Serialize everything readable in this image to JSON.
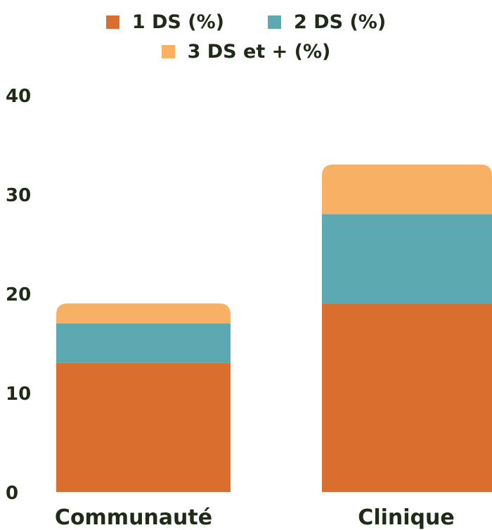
{
  "chart_data": {
    "type": "bar",
    "stacked": true,
    "categories": [
      "Communauté",
      "Clinique"
    ],
    "series": [
      {
        "name": "1 DS (%)",
        "values": [
          13,
          19
        ],
        "color": "#d96e2f"
      },
      {
        "name": "2 DS (%)",
        "values": [
          4,
          9
        ],
        "color": "#5da9b1"
      },
      {
        "name": "3 DS et + (%)",
        "values": [
          2,
          5
        ],
        "color": "#f8b065"
      }
    ],
    "y_ticks": [
      "0",
      "10",
      "20",
      "30",
      "40"
    ],
    "ylim": [
      0,
      40
    ],
    "title": "",
    "xlabel": "",
    "ylabel": "",
    "grid": false,
    "legend_position": "top-center"
  }
}
